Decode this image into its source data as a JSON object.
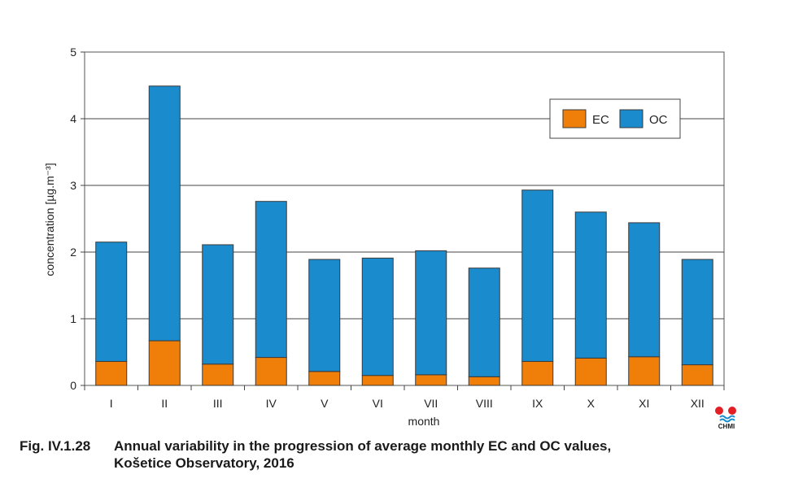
{
  "chart_data": {
    "type": "bar",
    "stacked": true,
    "categories": [
      "I",
      "II",
      "III",
      "IV",
      "V",
      "VI",
      "VII",
      "VIII",
      "IX",
      "X",
      "XI",
      "XII"
    ],
    "series": [
      {
        "name": "EC",
        "color": "#f07f09",
        "values": [
          0.36,
          0.67,
          0.32,
          0.42,
          0.21,
          0.15,
          0.16,
          0.13,
          0.36,
          0.41,
          0.43,
          0.31
        ]
      },
      {
        "name": "OC",
        "color": "#1a8bcc",
        "values": [
          1.79,
          3.82,
          1.79,
          2.34,
          1.68,
          1.76,
          1.86,
          1.63,
          2.57,
          2.19,
          2.01,
          1.58
        ]
      }
    ],
    "xlabel": "month",
    "ylabel": "concentration [µg.m⁻³]",
    "ylim": [
      0,
      5
    ],
    "yticks": [
      "0",
      "1",
      "2",
      "3",
      "4",
      "5"
    ],
    "grid": true,
    "legend_position": "top-right"
  },
  "caption": {
    "number": "Fig. IV.1.28",
    "line1": "Annual variability in the progression of average monthly EC and OC values,",
    "line2": "Košetice Observatory, 2016"
  },
  "logo": {
    "text": "CHMI",
    "colors": [
      "#e31e24",
      "#1a8bcc"
    ]
  }
}
